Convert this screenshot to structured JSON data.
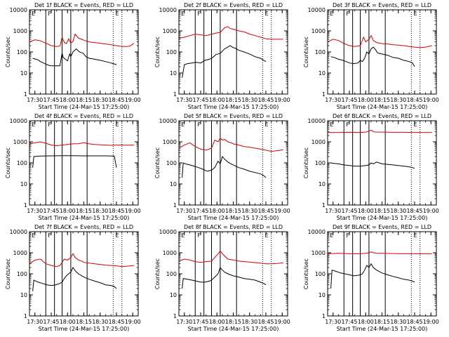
{
  "figure": {
    "x_axis_label": "Start Time (24-Mar-15 17:25:00)",
    "y_axis_label": "Counts/sec",
    "x_ticks": [
      "17:30",
      "17:45",
      "18:00",
      "18:15",
      "18:30",
      "18:45",
      "19:00"
    ],
    "y_ticks": [
      "1",
      "10",
      "100",
      "1000",
      "10000"
    ],
    "colors": {
      "events": "#000000",
      "lld": "#dd0000"
    }
  },
  "chart_data": [
    {
      "type": "line",
      "title": "Det 1f BLACK = Events, RED = LLD",
      "x_unit": "minutes after 17:25:00",
      "xlim": [
        0,
        100
      ],
      "ylim": [
        1,
        10000
      ],
      "y_scale": "log",
      "solid_markers": [
        15,
        23,
        30,
        38,
        53
      ],
      "dotted_markers": [
        77,
        85
      ],
      "region_labels": [
        "E",
        "F",
        "E"
      ],
      "series": [
        {
          "name": "Events",
          "x": [
            3,
            6,
            8,
            10,
            14,
            17,
            20,
            24,
            28,
            30,
            31,
            33,
            35,
            37,
            38,
            40,
            43,
            45,
            47,
            49,
            50,
            52,
            55,
            60,
            65,
            70,
            75,
            78,
            80
          ],
          "y": [
            50,
            45,
            42,
            35,
            28,
            24,
            22,
            22,
            22,
            90,
            55,
            45,
            38,
            80,
            60,
            100,
            140,
            110,
            95,
            90,
            80,
            60,
            50,
            45,
            40,
            35,
            30,
            27,
            25
          ]
        },
        {
          "x": [
            0,
            5,
            10,
            15,
            20,
            25,
            28,
            30,
            32,
            34,
            36,
            38,
            40,
            42,
            45,
            48,
            50,
            55,
            60,
            65,
            70,
            75,
            80,
            85,
            90,
            93,
            96
          ],
          "y": [
            300,
            380,
            340,
            260,
            200,
            180,
            190,
            500,
            280,
            250,
            420,
            260,
            320,
            700,
            450,
            400,
            360,
            300,
            280,
            260,
            240,
            220,
            200,
            180,
            180,
            200,
            260
          ]
        }
      ]
    },
    {
      "type": "line",
      "title": "Det 2f BLACK = Events, RED = LLD",
      "x_unit": "minutes after 17:25:00",
      "xlim": [
        0,
        100
      ],
      "ylim": [
        1,
        10000
      ],
      "y_scale": "log",
      "solid_markers": [
        15,
        23,
        30,
        38,
        53
      ],
      "dotted_markers": [
        77,
        85
      ],
      "region_labels": [
        "E",
        "F",
        "E"
      ],
      "series": [
        {
          "x": [
            3,
            5,
            8,
            12,
            16,
            20,
            24,
            28,
            30,
            32,
            34,
            38,
            40,
            42,
            45,
            47,
            50,
            52,
            55,
            60,
            65,
            70,
            75,
            78,
            80
          ],
          "y": [
            6,
            25,
            28,
            30,
            32,
            30,
            40,
            45,
            50,
            60,
            75,
            85,
            110,
            140,
            170,
            200,
            160,
            150,
            120,
            100,
            80,
            60,
            50,
            40,
            35
          ]
        },
        {
          "x": [
            0,
            5,
            10,
            15,
            20,
            25,
            30,
            35,
            38,
            40,
            42,
            45,
            47,
            50,
            55,
            60,
            65,
            70,
            75,
            80,
            85,
            90,
            96
          ],
          "y": [
            450,
            500,
            600,
            700,
            650,
            600,
            700,
            800,
            850,
            1100,
            1400,
            1600,
            1300,
            1200,
            1000,
            900,
            700,
            600,
            500,
            420,
            400,
            400,
            400
          ]
        }
      ]
    },
    {
      "type": "line",
      "title": "Det 3f BLACK = Events, RED = LLD",
      "x_unit": "minutes after 17:25:00",
      "xlim": [
        0,
        100
      ],
      "ylim": [
        1,
        10000
      ],
      "y_scale": "log",
      "solid_markers": [
        15,
        23,
        30,
        38,
        53
      ],
      "dotted_markers": [
        77,
        85
      ],
      "region_labels": [
        "E",
        "F",
        "E"
      ],
      "series": [
        {
          "x": [
            3,
            6,
            8,
            10,
            14,
            17,
            20,
            24,
            28,
            30,
            32,
            34,
            36,
            38,
            40,
            42,
            44,
            46,
            50,
            55,
            60,
            65,
            70,
            75,
            78,
            80
          ],
          "y": [
            60,
            55,
            50,
            45,
            40,
            35,
            30,
            28,
            30,
            40,
            35,
            50,
            100,
            80,
            140,
            170,
            130,
            90,
            80,
            70,
            55,
            50,
            40,
            35,
            30,
            20
          ]
        },
        {
          "x": [
            0,
            5,
            10,
            15,
            20,
            25,
            30,
            33,
            35,
            38,
            40,
            42,
            45,
            50,
            55,
            60,
            65,
            70,
            75,
            80,
            85,
            90,
            96
          ],
          "y": [
            300,
            400,
            350,
            250,
            200,
            180,
            200,
            500,
            300,
            400,
            600,
            350,
            280,
            250,
            240,
            220,
            210,
            200,
            180,
            170,
            160,
            170,
            200
          ]
        }
      ]
    },
    {
      "type": "line",
      "title": "Det 4f BLACK = Events, RED = LLD",
      "x_unit": "minutes after 17:25:00",
      "xlim": [
        0,
        100
      ],
      "ylim": [
        1,
        10000
      ],
      "y_scale": "log",
      "solid_markers": [
        15,
        23,
        30,
        38,
        53
      ],
      "dotted_markers": [
        77,
        85
      ],
      "region_labels": [
        "E",
        "F",
        "E"
      ],
      "series": [
        {
          "x": [
            3,
            4,
            10,
            20,
            30,
            40,
            50,
            60,
            70,
            78,
            80
          ],
          "y": [
            60,
            200,
            210,
            215,
            220,
            220,
            215,
            215,
            215,
            210,
            60
          ]
        },
        {
          "x": [
            0,
            5,
            10,
            15,
            20,
            25,
            30,
            35,
            40,
            45,
            50,
            55,
            60,
            65,
            70,
            75,
            80,
            85,
            90,
            96
          ],
          "y": [
            800,
            900,
            1000,
            850,
            700,
            650,
            700,
            750,
            800,
            820,
            900,
            800,
            750,
            720,
            700,
            680,
            700,
            700,
            690,
            700
          ]
        }
      ]
    },
    {
      "type": "line",
      "title": "Det 5f BLACK = Events, RED = LLD",
      "x_unit": "minutes after 17:25:00",
      "xlim": [
        0,
        100
      ],
      "ylim": [
        1,
        10000
      ],
      "y_scale": "log",
      "solid_markers": [
        15,
        23,
        30,
        38,
        53
      ],
      "dotted_markers": [
        77,
        85
      ],
      "region_labels": [
        "E",
        "F",
        "E"
      ],
      "series": [
        {
          "x": [
            3,
            4,
            6,
            10,
            14,
            18,
            22,
            26,
            30,
            33,
            36,
            38,
            40,
            42,
            45,
            48,
            50,
            55,
            60,
            65,
            70,
            75,
            78,
            80
          ],
          "y": [
            20,
            100,
            90,
            80,
            70,
            60,
            50,
            40,
            45,
            60,
            120,
            90,
            200,
            150,
            110,
            90,
            80,
            60,
            50,
            40,
            35,
            30,
            25,
            20
          ]
        },
        {
          "x": [
            0,
            5,
            10,
            15,
            20,
            25,
            30,
            33,
            36,
            38,
            40,
            42,
            45,
            48,
            50,
            55,
            60,
            65,
            70,
            75,
            80,
            85,
            90,
            96
          ],
          "y": [
            500,
            700,
            900,
            600,
            450,
            400,
            500,
            1200,
            1000,
            1500,
            1200,
            1300,
            1000,
            900,
            800,
            700,
            600,
            550,
            500,
            450,
            400,
            350,
            380,
            420
          ]
        }
      ]
    },
    {
      "type": "line",
      "title": "Det 6f BLACK = Events, RED = LLD",
      "x_unit": "minutes after 17:25:00",
      "xlim": [
        0,
        100
      ],
      "ylim": [
        1,
        10000
      ],
      "y_scale": "log",
      "solid_markers": [
        15,
        23,
        30,
        38,
        53
      ],
      "dotted_markers": [
        77,
        85
      ],
      "region_labels": [
        "E",
        "F",
        "E"
      ],
      "series": [
        {
          "x": [
            3,
            6,
            10,
            15,
            20,
            25,
            30,
            35,
            38,
            40,
            42,
            45,
            50,
            55,
            60,
            65,
            70,
            75,
            78,
            80
          ],
          "y": [
            100,
            95,
            90,
            80,
            75,
            70,
            70,
            75,
            80,
            100,
            90,
            110,
            90,
            85,
            80,
            75,
            70,
            65,
            60,
            55
          ]
        },
        {
          "x": [
            0,
            10,
            20,
            30,
            35,
            38,
            40,
            42,
            45,
            50,
            60,
            70,
            80,
            90,
            96
          ],
          "y": [
            2800,
            2800,
            2850,
            2800,
            2900,
            3200,
            3600,
            3000,
            2900,
            2900,
            2850,
            2850,
            2800,
            2800,
            2800
          ]
        }
      ]
    },
    {
      "type": "line",
      "title": "Det 7f BLACK = Events, RED = LLD",
      "x_unit": "minutes after 17:25:00",
      "xlim": [
        0,
        100
      ],
      "ylim": [
        1,
        10000
      ],
      "y_scale": "log",
      "solid_markers": [
        15,
        23,
        30,
        38,
        53
      ],
      "dotted_markers": [
        77,
        85
      ],
      "region_labels": [
        "E",
        "F",
        "E"
      ],
      "series": [
        {
          "x": [
            3,
            4,
            8,
            12,
            16,
            20,
            24,
            28,
            30,
            32,
            34,
            36,
            38,
            40,
            42,
            45,
            50,
            55,
            60,
            65,
            70,
            75,
            78,
            80
          ],
          "y": [
            15,
            50,
            40,
            35,
            30,
            28,
            30,
            35,
            40,
            60,
            80,
            100,
            120,
            200,
            140,
            100,
            70,
            55,
            45,
            38,
            30,
            28,
            25,
            20
          ]
        },
        {
          "x": [
            0,
            5,
            10,
            15,
            20,
            25,
            28,
            30,
            32,
            35,
            38,
            40,
            42,
            45,
            48,
            50,
            55,
            60,
            65,
            70,
            75,
            80,
            85,
            90,
            96
          ],
          "y": [
            300,
            450,
            500,
            300,
            250,
            220,
            250,
            350,
            500,
            450,
            600,
            900,
            600,
            450,
            400,
            350,
            320,
            300,
            280,
            260,
            250,
            240,
            220,
            230,
            250
          ]
        }
      ]
    },
    {
      "type": "line",
      "title": "Det 8f BLACK = Events, RED = LLD",
      "x_unit": "minutes after 17:25:00",
      "xlim": [
        0,
        100
      ],
      "ylim": [
        1,
        10000
      ],
      "y_scale": "log",
      "solid_markers": [
        15,
        23,
        30,
        38,
        53
      ],
      "dotted_markers": [
        77,
        85
      ],
      "region_labels": [
        "E",
        "F",
        "E"
      ],
      "series": [
        {
          "x": [
            3,
            4,
            8,
            12,
            16,
            20,
            24,
            28,
            30,
            33,
            36,
            38,
            40,
            42,
            45,
            50,
            55,
            60,
            65,
            70,
            75,
            78,
            80
          ],
          "y": [
            20,
            60,
            55,
            50,
            45,
            40,
            40,
            45,
            50,
            70,
            100,
            200,
            150,
            120,
            100,
            80,
            70,
            60,
            55,
            50,
            40,
            35,
            30
          ]
        },
        {
          "x": [
            0,
            5,
            10,
            15,
            20,
            25,
            30,
            33,
            36,
            38,
            40,
            42,
            45,
            50,
            55,
            60,
            65,
            70,
            75,
            80,
            85,
            90,
            96
          ],
          "y": [
            400,
            500,
            450,
            380,
            350,
            380,
            400,
            600,
            900,
            1200,
            900,
            700,
            500,
            450,
            400,
            380,
            360,
            340,
            320,
            300,
            300,
            310,
            330
          ]
        }
      ]
    },
    {
      "type": "line",
      "title": "Det 9f BLACK = Events, RED = LLD",
      "x_unit": "minutes after 17:25:00",
      "xlim": [
        0,
        100
      ],
      "ylim": [
        1,
        10000
      ],
      "y_scale": "log",
      "solid_markers": [
        15,
        23,
        30,
        38,
        53
      ],
      "dotted_markers": [
        77,
        85
      ],
      "region_labels": [
        "E",
        "F",
        "E"
      ],
      "series": [
        {
          "x": [
            3,
            4,
            8,
            12,
            16,
            20,
            24,
            28,
            30,
            32,
            34,
            36,
            38,
            40,
            42,
            45,
            50,
            55,
            60,
            65,
            70,
            75,
            78,
            80
          ],
          "y": [
            20,
            150,
            130,
            110,
            100,
            90,
            80,
            85,
            90,
            100,
            150,
            250,
            200,
            300,
            200,
            150,
            110,
            90,
            75,
            65,
            55,
            50,
            45,
            40
          ]
        },
        {
          "x": [
            0,
            10,
            20,
            30,
            35,
            38,
            40,
            42,
            45,
            50,
            60,
            70,
            80,
            90,
            96
          ],
          "y": [
            900,
            950,
            900,
            900,
            950,
            1000,
            1100,
            1000,
            950,
            950,
            920,
            900,
            900,
            900,
            900
          ]
        }
      ]
    }
  ]
}
